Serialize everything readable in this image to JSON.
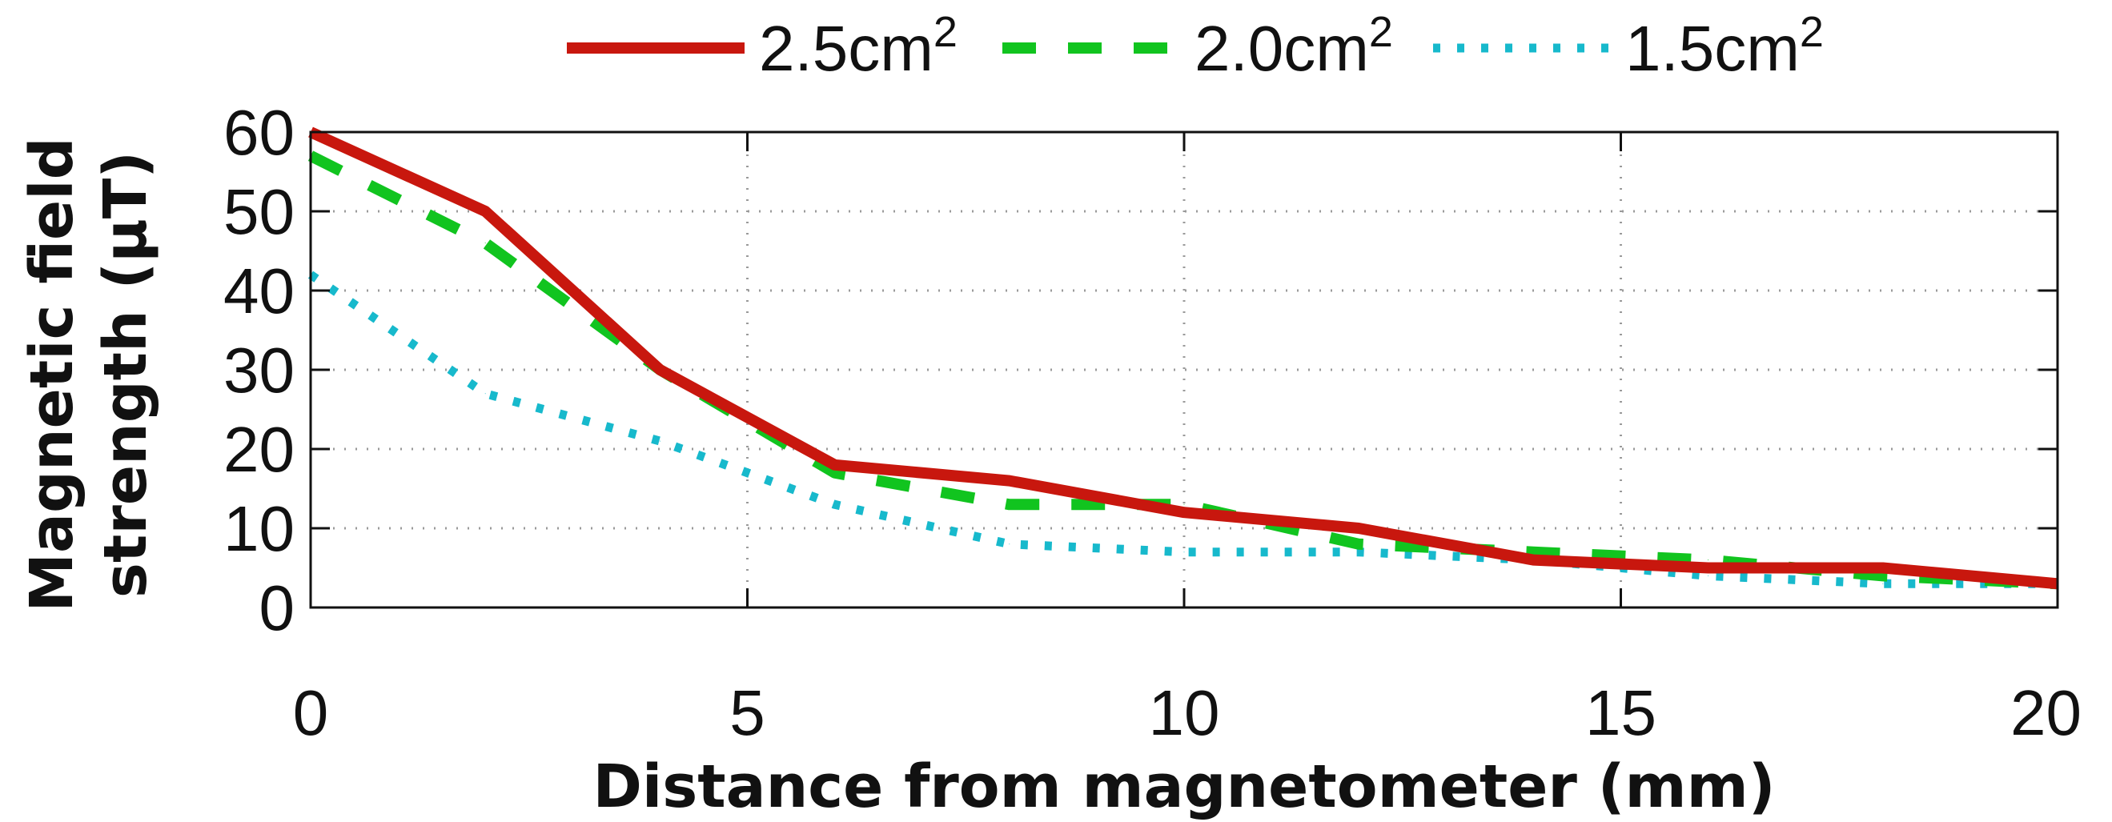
{
  "chart_data": {
    "type": "line",
    "title": "",
    "xlabel": "Distance from magnetometer (mm)",
    "ylabel_line1": "Magnetic field",
    "ylabel_line2": "strength (µT)",
    "xlim": [
      0,
      20
    ],
    "ylim": [
      0,
      60
    ],
    "xticks": [
      "0",
      "5",
      "10",
      "15",
      "20"
    ],
    "yticks": [
      "0",
      "10",
      "20",
      "30",
      "40",
      "50",
      "60"
    ],
    "grid": true,
    "legend_position": "top",
    "series": [
      {
        "name": "2.5cm",
        "name_sup": "2",
        "color": "#c8170e",
        "style": "solid",
        "points": [
          [
            0,
            60
          ],
          [
            2,
            50
          ],
          [
            4,
            30
          ],
          [
            6,
            18
          ],
          [
            8,
            16
          ],
          [
            10,
            12
          ],
          [
            12,
            10
          ],
          [
            14,
            6
          ],
          [
            16,
            5
          ],
          [
            18,
            5
          ],
          [
            20,
            3
          ]
        ]
      },
      {
        "name": "2.0cm",
        "name_sup": "2",
        "color": "#11c41f",
        "style": "dashed",
        "points": [
          [
            0,
            57
          ],
          [
            2,
            46
          ],
          [
            4,
            30
          ],
          [
            6,
            17
          ],
          [
            8,
            13
          ],
          [
            10,
            13
          ],
          [
            12,
            8
          ],
          [
            14,
            7
          ],
          [
            16,
            6
          ],
          [
            18,
            4
          ],
          [
            20,
            3
          ]
        ]
      },
      {
        "name": "1.5cm",
        "name_sup": "2",
        "color": "#17b9cc",
        "style": "dotted",
        "points": [
          [
            0,
            42
          ],
          [
            2,
            27
          ],
          [
            4,
            21
          ],
          [
            6,
            13
          ],
          [
            8,
            8
          ],
          [
            10,
            7
          ],
          [
            12,
            7
          ],
          [
            14,
            6
          ],
          [
            16,
            4
          ],
          [
            18,
            3
          ],
          [
            20,
            3
          ]
        ]
      }
    ]
  }
}
